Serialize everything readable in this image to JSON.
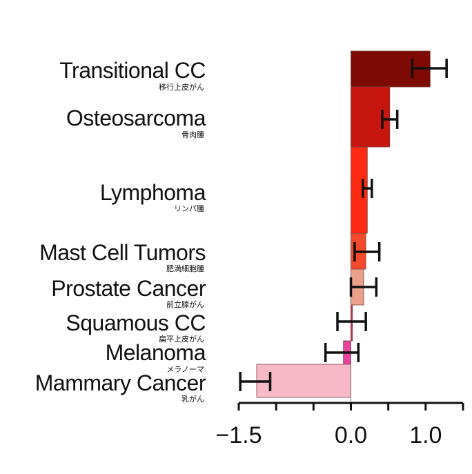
{
  "chart_data": {
    "type": "bar",
    "orientation": "horizontal",
    "categories": [
      {
        "label": "Transitional CC",
        "sublabel": "移行上皮がん",
        "value": 1.06,
        "err_low": 0.82,
        "err_high": 1.28,
        "color": "#7e0a04"
      },
      {
        "label": "Osteosarcoma",
        "sublabel": "骨肉腫",
        "value": 0.52,
        "err_low": 0.42,
        "err_high": 0.62,
        "color": "#c7150f"
      },
      {
        "label": "Lymphoma",
        "sublabel": "リンパ腫",
        "value": 0.22,
        "err_low": 0.16,
        "err_high": 0.28,
        "color": "#ff2a12"
      },
      {
        "label": "Mast Cell Tumors",
        "sublabel": "肥満細胞腫",
        "value": 0.2,
        "err_low": 0.05,
        "err_high": 0.38,
        "color": "#f24a2a"
      },
      {
        "label": "Prostate Cancer",
        "sublabel": "前立腺がん",
        "value": 0.17,
        "err_low": 0.0,
        "err_high": 0.34,
        "color": "#eaa089"
      },
      {
        "label": "Squamous CC",
        "sublabel": "扁平上皮がん",
        "value": 0.02,
        "err_low": -0.18,
        "err_high": 0.2,
        "color": "#d02a4a"
      },
      {
        "label": "Melanoma",
        "sublabel": "メラノーマ",
        "value": -0.1,
        "err_low": -0.34,
        "err_high": 0.1,
        "color": "#e8449c"
      },
      {
        "label": "Mammary Cancer",
        "sublabel": "乳がん",
        "value": -1.26,
        "err_low": -1.48,
        "err_high": -1.08,
        "color": "#f7b9c8"
      }
    ],
    "xlim": [
      -1.5,
      1.5
    ],
    "xticks": [
      -1.5,
      0.0,
      1.0
    ],
    "xtick_labels": [
      "−1.5",
      "0.0",
      "1.0"
    ],
    "minor_ticks": [
      -1.5,
      -1.0,
      -0.5,
      0.0,
      0.5,
      1.0,
      1.5
    ],
    "title": "",
    "xlabel": "",
    "ylabel": "",
    "grid": false,
    "legend": "none"
  }
}
